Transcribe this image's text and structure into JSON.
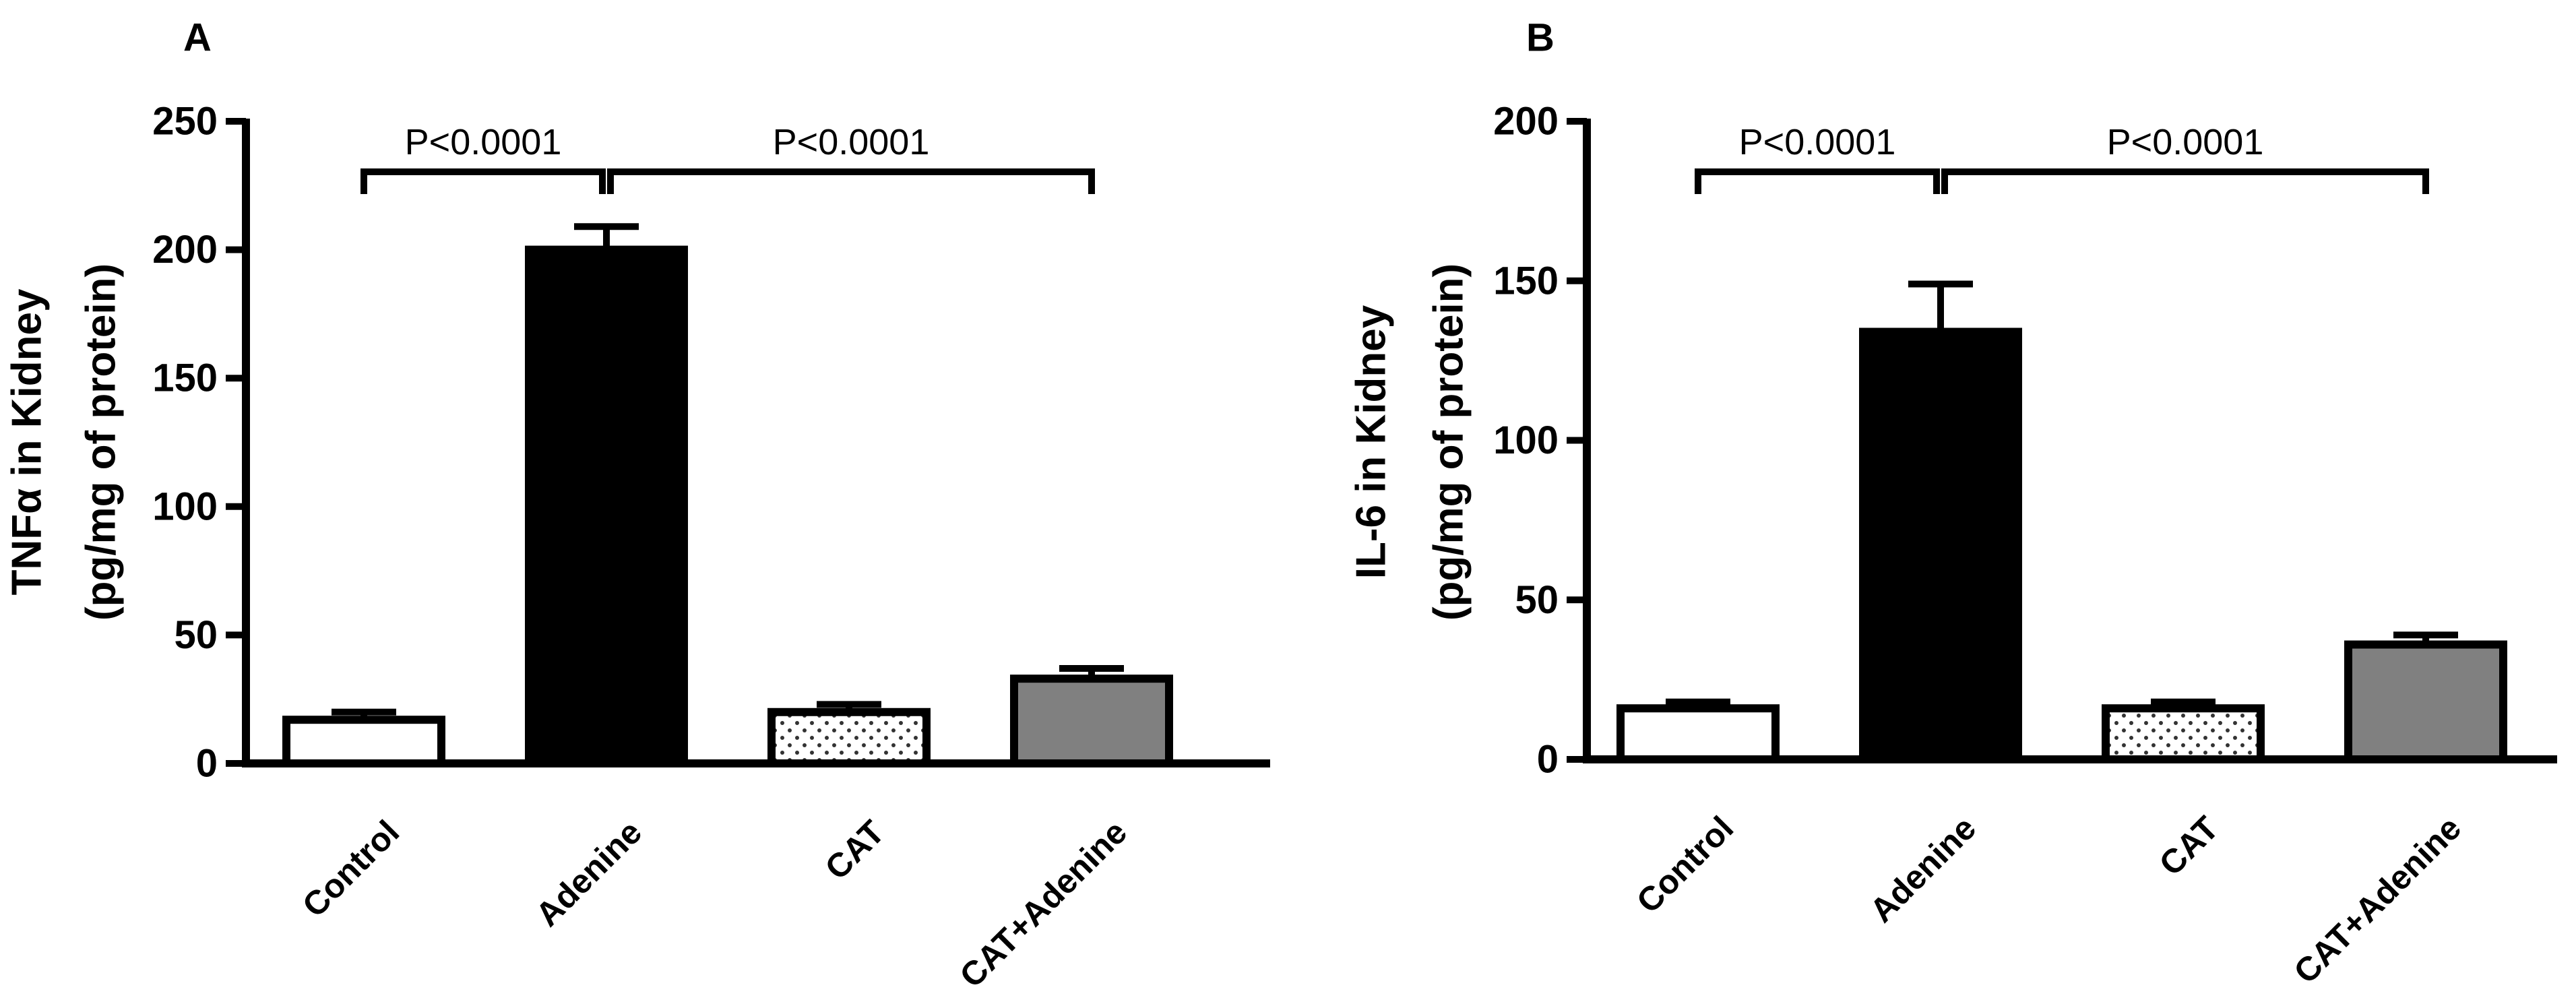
{
  "chart_data": [
    {
      "panel": "A",
      "type": "bar",
      "categories": [
        "Control",
        "Adenine",
        "CAT",
        "CAT+Adenine"
      ],
      "values": [
        17,
        200,
        20,
        33
      ],
      "errors": [
        3,
        9,
        3,
        4
      ],
      "fills": [
        "white",
        "black",
        "dotted",
        "gray"
      ],
      "ylabel": [
        "TNFα in Kidney",
        "(pg/mg of protein)"
      ],
      "ylim": [
        0,
        250
      ],
      "yticks": [
        "0",
        "50",
        "100",
        "150",
        "200",
        "250"
      ],
      "significance": [
        {
          "from": 0,
          "to": 1,
          "label": "P<0.0001"
        },
        {
          "from": 1,
          "to": 3,
          "label": "P<0.0001"
        }
      ]
    },
    {
      "panel": "B",
      "type": "bar",
      "categories": [
        "Control",
        "Adenine",
        "CAT",
        "CAT+Adenine"
      ],
      "values": [
        16,
        134,
        16,
        36
      ],
      "errors": [
        2,
        15,
        2,
        3
      ],
      "fills": [
        "white",
        "black",
        "dotted",
        "gray"
      ],
      "ylabel": [
        "IL-6 in Kidney",
        "(pg/mg of protein)"
      ],
      "ylim": [
        0,
        200
      ],
      "yticks": [
        "0",
        "50",
        "100",
        "150",
        "200"
      ],
      "significance": [
        {
          "from": 0,
          "to": 1,
          "label": "P<0.0001"
        },
        {
          "from": 1,
          "to": 3,
          "label": "P<0.0001"
        }
      ]
    }
  ],
  "colors": {
    "axis": "#000000",
    "black_bar": "#000000",
    "gray_bar": "#808080",
    "white_bar": "#ffffff",
    "dot": "#333333"
  }
}
